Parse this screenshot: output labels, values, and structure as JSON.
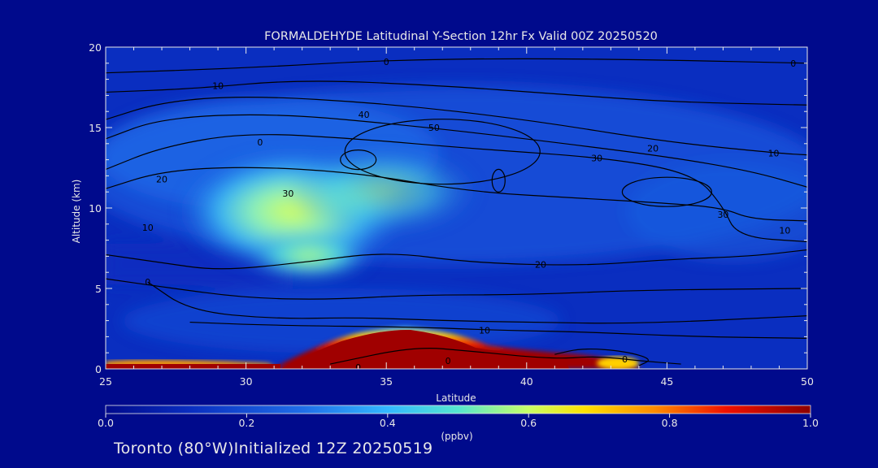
{
  "colors": {
    "background": "#000a8c",
    "field_low": "#0a2ec0",
    "field_mid": "#3aa0f0",
    "field_high": "#c8ff66",
    "field_peak": "#a00000",
    "contour": "#000000"
  },
  "footer_text": "Toronto (80°W)Initialized 12Z 20250519",
  "chart_data": {
    "type": "heatmap",
    "title": "FORMALDEHYDE Latitudinal Y-Section 12hr  Fx Valid 00Z 20250520",
    "xlabel": "Latitude",
    "ylabel": "Altitude (km)",
    "xlim": [
      25,
      50
    ],
    "ylim": [
      0,
      20
    ],
    "x_ticks": [
      25,
      30,
      35,
      40,
      45,
      50
    ],
    "y_ticks": [
      0,
      5,
      10,
      15,
      20
    ],
    "colorbar": {
      "label": "(ppbv)",
      "range": [
        0.0,
        1.0
      ],
      "ticks": [
        "0.0",
        "0.2",
        "0.4",
        "0.6",
        "0.8",
        "1.0"
      ]
    },
    "field_features": [
      {
        "feature": "surface maximum",
        "lat_range": [
          31,
          44
        ],
        "alt_top_km": 2.5,
        "value_ppbv": 1.0
      },
      {
        "feature": "mid-level plume",
        "lat_center": 33.5,
        "alt_center_km": 9,
        "value_ppbv": 0.5
      }
    ],
    "contour_labels": [
      {
        "value": "0",
        "lat": 34,
        "alt": 0.1
      },
      {
        "value": "0",
        "lat": 43.5,
        "alt": 0.6
      },
      {
        "value": "0",
        "lat": 37.2,
        "alt": 0.5
      },
      {
        "value": "10",
        "lat": 38.5,
        "alt": 2.4
      },
      {
        "value": "0",
        "lat": 26.5,
        "alt": 5.4
      },
      {
        "value": "10",
        "lat": 26.5,
        "alt": 8.8
      },
      {
        "value": "20",
        "lat": 27,
        "alt": 11.8
      },
      {
        "value": "30",
        "lat": 31.5,
        "alt": 10.9
      },
      {
        "value": "20",
        "lat": 40.5,
        "alt": 6.5
      },
      {
        "value": "30",
        "lat": 47,
        "alt": 9.6
      },
      {
        "value": "10",
        "lat": 49.2,
        "alt": 8.6
      },
      {
        "value": "10",
        "lat": 48.8,
        "alt": 13.4
      },
      {
        "value": "20",
        "lat": 44.5,
        "alt": 13.7
      },
      {
        "value": "30",
        "lat": 42.5,
        "alt": 13.1
      },
      {
        "value": "50",
        "lat": 36.7,
        "alt": 15
      },
      {
        "value": "40",
        "lat": 34.2,
        "alt": 15.8
      },
      {
        "value": "0",
        "lat": 30.5,
        "alt": 14.1
      },
      {
        "value": "10",
        "lat": 29,
        "alt": 17.6
      },
      {
        "value": "0",
        "lat": 35,
        "alt": 19.1
      },
      {
        "value": "0",
        "lat": 49.5,
        "alt": 19
      }
    ],
    "contours": [
      [
        [
          25,
          18.4
        ],
        [
          30,
          18.7
        ],
        [
          35,
          19.2
        ],
        [
          40,
          19.3
        ],
        [
          45,
          19.2
        ],
        [
          50,
          19.0
        ]
      ],
      [
        [
          25,
          17.2
        ],
        [
          28,
          17.4
        ],
        [
          32,
          18.0
        ],
        [
          37,
          17.6
        ],
        [
          41,
          17.1
        ],
        [
          45,
          16.6
        ],
        [
          50,
          16.4
        ]
      ],
      [
        [
          25,
          15.5
        ],
        [
          27,
          16.6
        ],
        [
          30,
          17.0
        ],
        [
          35,
          16.5
        ],
        [
          40,
          15.5
        ],
        [
          45,
          14.1
        ],
        [
          49,
          13.4
        ],
        [
          50,
          13.3
        ]
      ],
      [
        [
          25,
          14.3
        ],
        [
          27,
          15.6
        ],
        [
          31,
          15.9
        ],
        [
          36,
          15.1
        ],
        [
          40,
          14.3
        ],
        [
          45,
          13.2
        ],
        [
          48,
          12.3
        ],
        [
          50,
          11.3
        ]
      ],
      [
        [
          25,
          12.4
        ],
        [
          27,
          13.8
        ],
        [
          30,
          14.7
        ],
        [
          34,
          14.3
        ],
        [
          38,
          13.7
        ],
        [
          43,
          13.1
        ],
        [
          46,
          12.1
        ],
        [
          47,
          10.1
        ],
        [
          47.5,
          8.2
        ],
        [
          50,
          7.9
        ]
      ],
      [
        [
          25,
          11.2
        ],
        [
          27,
          12.3
        ],
        [
          30,
          12.6
        ],
        [
          34,
          12.2
        ],
        [
          38,
          11.0
        ],
        [
          42,
          10.6
        ],
        [
          45,
          10.3
        ],
        [
          47,
          10.0
        ],
        [
          48,
          9.3
        ],
        [
          50,
          9.2
        ]
      ],
      [
        [
          25,
          7.1
        ],
        [
          27,
          6.6
        ],
        [
          29,
          6.1
        ],
        [
          32,
          6.6
        ],
        [
          35,
          7.3
        ],
        [
          38,
          6.6
        ],
        [
          42,
          6.4
        ],
        [
          45,
          6.8
        ],
        [
          48,
          7.0
        ],
        [
          50,
          7.4
        ]
      ],
      [
        [
          25,
          5.6
        ],
        [
          27,
          5.1
        ],
        [
          30,
          4.4
        ],
        [
          33,
          4.3
        ],
        [
          36,
          4.6
        ],
        [
          40,
          4.6
        ],
        [
          44,
          4.9
        ],
        [
          50,
          5.0
        ]
      ],
      [
        [
          26.5,
          5.4
        ],
        [
          28,
          3.6
        ],
        [
          31,
          3.1
        ],
        [
          34,
          3.2
        ],
        [
          37,
          3.0
        ],
        [
          40,
          2.9
        ],
        [
          44,
          2.8
        ],
        [
          50,
          3.3
        ]
      ],
      [
        [
          28,
          2.9
        ],
        [
          31,
          2.7
        ],
        [
          36,
          2.6
        ],
        [
          39,
          2.4
        ],
        [
          42,
          2.3
        ],
        [
          46,
          2.0
        ],
        [
          50,
          1.9
        ]
      ],
      [
        [
          33,
          0.3
        ],
        [
          36,
          1.4
        ],
        [
          38,
          1.1
        ],
        [
          41,
          0.6
        ],
        [
          42.5,
          0.8
        ],
        [
          44,
          0.5
        ],
        [
          45.5,
          0.3
        ]
      ],
      [
        [
          41,
          0.9
        ],
        [
          42,
          1.3
        ],
        [
          43.5,
          1.1
        ],
        [
          44.5,
          0.6
        ],
        [
          44,
          0.2
        ]
      ]
    ]
  }
}
